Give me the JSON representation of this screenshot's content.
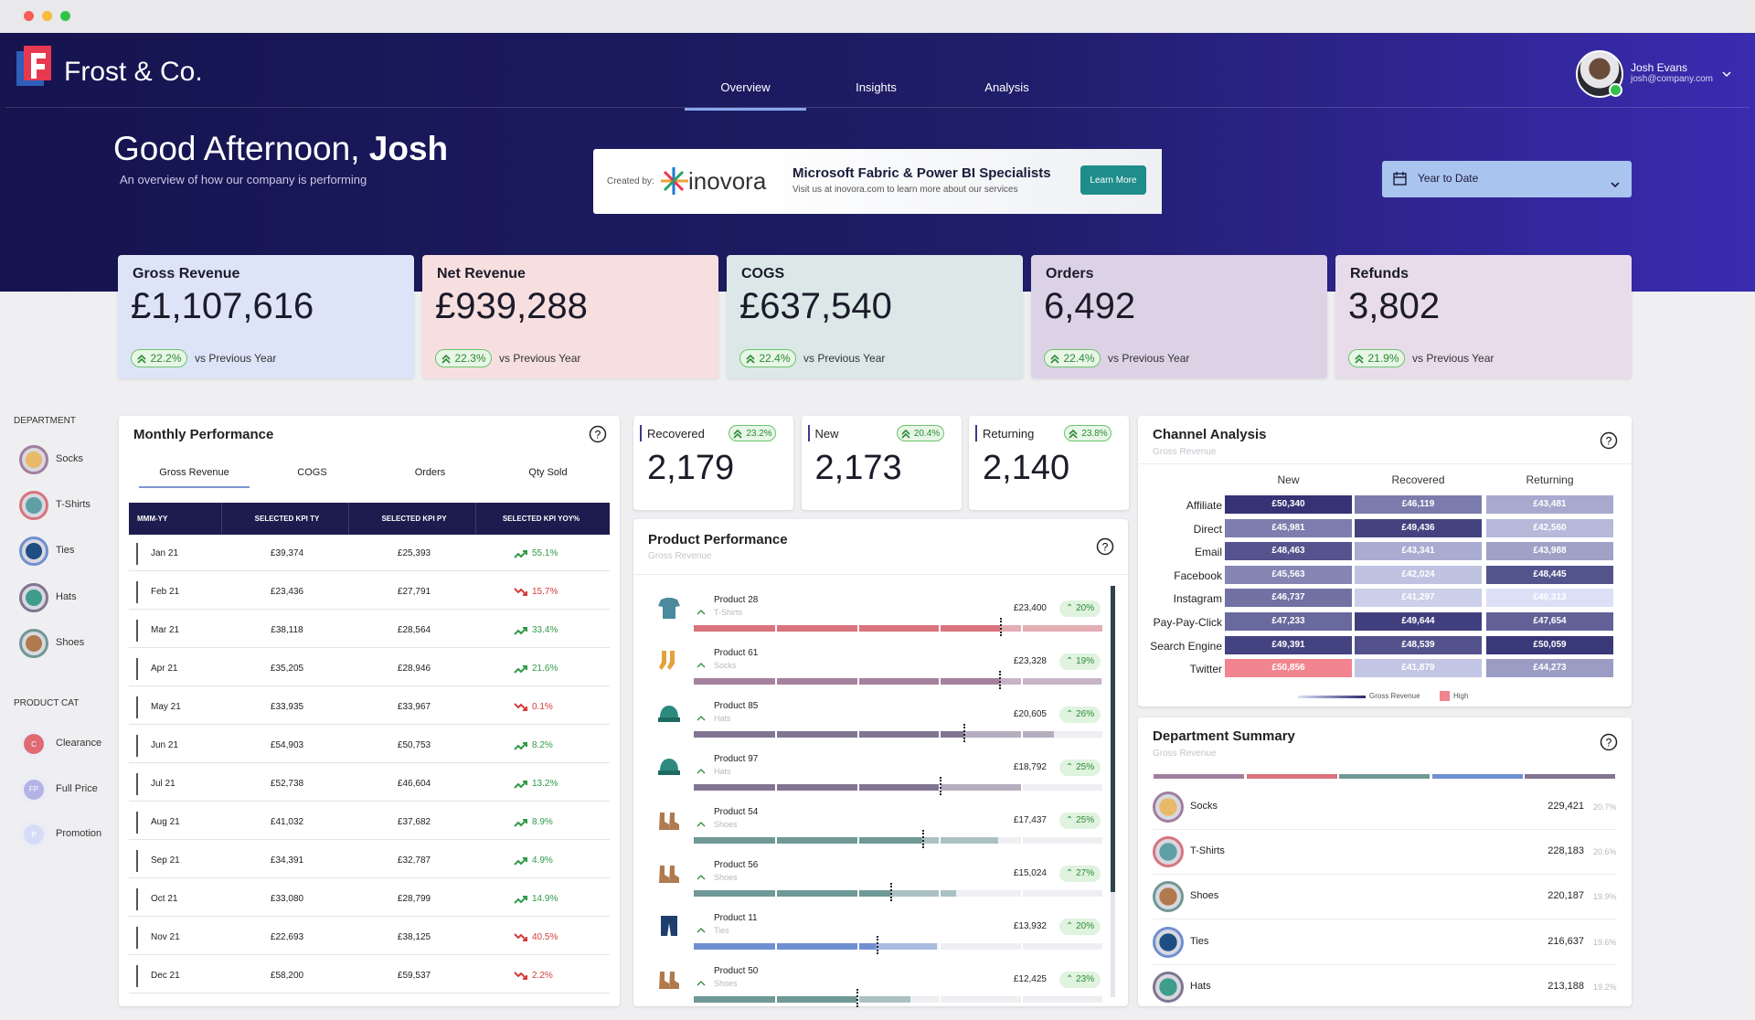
{
  "brand": "Frost & Co.",
  "nav": [
    "Overview",
    "Insights",
    "Analysis"
  ],
  "user": {
    "name": "Josh Evans",
    "email": "josh@company.com"
  },
  "greeting": {
    "prefix": "Good Afternoon, ",
    "name": "Josh",
    "subtitle": "An overview of how our company is performing"
  },
  "banner": {
    "created_by": "Created by:",
    "brand": "inovora",
    "title": "Microsoft Fabric & Power BI Specialists",
    "subtitle": "Visit us at inovora.com to learn more about our services",
    "button": "Learn More"
  },
  "date_filter": "Year to Date",
  "kpis": [
    {
      "label": "Gross Revenue",
      "value": "£1,107,616",
      "change": "22.2%",
      "compare": "vs Previous Year",
      "color": "#dde4f8"
    },
    {
      "label": "Net Revenue",
      "value": "£939,288",
      "change": "22.3%",
      "compare": "vs Previous Year",
      "color": "#f7dfdf"
    },
    {
      "label": "COGS",
      "value": "£637,540",
      "change": "22.4%",
      "compare": "vs Previous Year",
      "color": "#dbe8e7"
    },
    {
      "label": "Orders",
      "value": "6,492",
      "change": "22.4%",
      "compare": "vs Previous Year",
      "color": "#dcd2e6"
    },
    {
      "label": "Refunds",
      "value": "3,802",
      "change": "21.9%",
      "compare": "vs Previous Year",
      "color": "#e8dceb"
    }
  ],
  "sidebar": {
    "department": {
      "title": "DEPARTMENT",
      "items": [
        "Socks",
        "T-Shirts",
        "Ties",
        "Hats",
        "Shoes"
      ]
    },
    "product_cat": {
      "title": "PRODUCT CAT",
      "items": [
        {
          "label": "Clearance",
          "badge": "C"
        },
        {
          "label": "Full Price",
          "badge": "FP"
        },
        {
          "label": "Promotion",
          "badge": "P"
        }
      ]
    }
  },
  "monthly": {
    "title": "Monthly Performance",
    "tabs": [
      "Gross Revenue",
      "COGS",
      "Orders",
      "Qty Sold"
    ],
    "columns": [
      "MMM-YY",
      "SELECTED KPI TY",
      "SELECTED KPI PY",
      "SELECTED KPI YOY%"
    ],
    "rows": [
      {
        "month": "Jan 21",
        "ty": "£39,374",
        "py": "£25,393",
        "yoy": "55.1%",
        "trend": "up"
      },
      {
        "month": "Feb 21",
        "ty": "£23,436",
        "py": "£27,791",
        "yoy": "15.7%",
        "trend": "down"
      },
      {
        "month": "Mar 21",
        "ty": "£38,118",
        "py": "£28,564",
        "yoy": "33.4%",
        "trend": "up"
      },
      {
        "month": "Apr 21",
        "ty": "£35,205",
        "py": "£28,946",
        "yoy": "21.6%",
        "trend": "up"
      },
      {
        "month": "May 21",
        "ty": "£33,935",
        "py": "£33,967",
        "yoy": "0.1%",
        "trend": "down"
      },
      {
        "month": "Jun 21",
        "ty": "£54,903",
        "py": "£50,753",
        "yoy": "8.2%",
        "trend": "up"
      },
      {
        "month": "Jul 21",
        "ty": "£52,738",
        "py": "£46,604",
        "yoy": "13.2%",
        "trend": "up"
      },
      {
        "month": "Aug 21",
        "ty": "£41,032",
        "py": "£37,682",
        "yoy": "8.9%",
        "trend": "up"
      },
      {
        "month": "Sep 21",
        "ty": "£34,391",
        "py": "£32,787",
        "yoy": "4.9%",
        "trend": "up"
      },
      {
        "month": "Oct 21",
        "ty": "£33,080",
        "py": "£28,799",
        "yoy": "14.9%",
        "trend": "up"
      },
      {
        "month": "Nov 21",
        "ty": "£22,693",
        "py": "£38,125",
        "yoy": "40.5%",
        "trend": "down"
      },
      {
        "month": "Dec 21",
        "ty": "£58,200",
        "py": "£59,537",
        "yoy": "2.2%",
        "trend": "down"
      }
    ]
  },
  "customers": [
    {
      "label": "Recovered",
      "value": "2,179",
      "change": "23.2%"
    },
    {
      "label": "New",
      "value": "2,173",
      "change": "20.4%"
    },
    {
      "label": "Returning",
      "value": "2,140",
      "change": "23.8%"
    }
  ],
  "products": {
    "title": "Product Performance",
    "subtitle": "Gross Revenue",
    "items": [
      {
        "name": "Product 28",
        "dept": "T-Shirts",
        "value": 23400,
        "value_label": "£23,400",
        "change": "20%",
        "color": "#d9737e"
      },
      {
        "name": "Product 61",
        "dept": "Socks",
        "value": 23328,
        "value_label": "£23,328",
        "change": "19%",
        "color": "#a5819e"
      },
      {
        "name": "Product 85",
        "dept": "Hats",
        "value": 20605,
        "value_label": "£20,605",
        "change": "26%",
        "color": "#817592"
      },
      {
        "name": "Product 97",
        "dept": "Hats",
        "value": 18792,
        "value_label": "£18,792",
        "change": "25%",
        "color": "#817592"
      },
      {
        "name": "Product 54",
        "dept": "Shoes",
        "value": 17437,
        "value_label": "£17,437",
        "change": "25%",
        "color": "#6f9896"
      },
      {
        "name": "Product 56",
        "dept": "Shoes",
        "value": 15024,
        "value_label": "£15,024",
        "change": "27%",
        "color": "#6f9896"
      },
      {
        "name": "Product 11",
        "dept": "Ties",
        "value": 13932,
        "value_label": "£13,932",
        "change": "20%",
        "color": "#6f8fd0"
      },
      {
        "name": "Product 50",
        "dept": "Shoes",
        "value": 12425,
        "value_label": "£12,425",
        "change": "23%",
        "color": "#6f9896"
      }
    ]
  },
  "channels": {
    "title": "Channel Analysis",
    "subtitle": "Gross Revenue",
    "columns": [
      "New",
      "Recovered",
      "Returning"
    ],
    "rows": [
      {
        "label": "Affiliate",
        "cells": [
          "£50,340",
          "£46,119",
          "£43,481"
        ]
      },
      {
        "label": "Direct",
        "cells": [
          "£45,981",
          "£49,436",
          "£42,560"
        ]
      },
      {
        "label": "Email",
        "cells": [
          "£48,463",
          "£43,341",
          "£43,988"
        ]
      },
      {
        "label": "Facebook",
        "cells": [
          "£45,563",
          "£42,024",
          "£48,445"
        ]
      },
      {
        "label": "Instagram",
        "cells": [
          "£46,737",
          "£41,297",
          "£40,313"
        ]
      },
      {
        "label": "Pay-Pay-Click",
        "cells": [
          "£47,233",
          "£49,644",
          "£47,654"
        ]
      },
      {
        "label": "Search Engine",
        "cells": [
          "£49,391",
          "£48,539",
          "£50,059"
        ]
      },
      {
        "label": "Twitter",
        "cells": [
          "£50,856",
          "£41,879",
          "£44,273"
        ]
      }
    ],
    "legend": [
      "Gross Revenue",
      "High"
    ]
  },
  "dept_summary": {
    "title": "Department Summary",
    "subtitle": "Gross Revenue",
    "items": [
      {
        "name": "Socks",
        "value": "229,421",
        "share": "20.7%"
      },
      {
        "name": "T-Shirts",
        "value": "228,183",
        "share": "20.6%"
      },
      {
        "name": "Shoes",
        "value": "220,187",
        "share": "19.9%"
      },
      {
        "name": "Ties",
        "value": "216,637",
        "share": "19.6%"
      },
      {
        "name": "Hats",
        "value": "213,188",
        "share": "19.2%"
      }
    ]
  }
}
